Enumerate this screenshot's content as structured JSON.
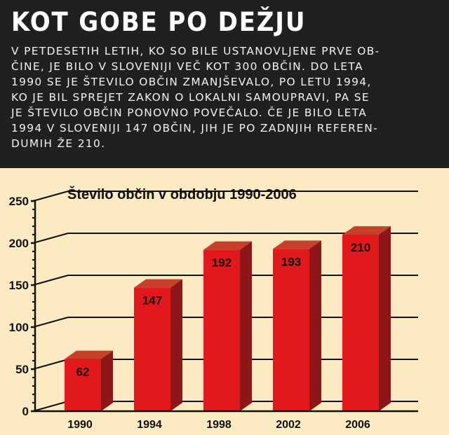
{
  "headline": "KOT GOBE PO DEŽJU",
  "body_lines": [
    "V PETDESETIH LETIH, KO SO BILE USTANOVLJENE PRVE OB-",
    "ČINE, JE BILO V SLOVENIJI VEČ KOT 300 OBČIN. DO LETA",
    "1990 SE JE ŠTEVILO OBČIN ZMANJŠEVALO, PO LETU 1994,",
    "KO JE BIL SPREJET ZAKON O LOKALNI SAMOUPRAVI, PA SE",
    "JE ŠTEVILO OBČIN PONOVNO POVEČALO. ČE JE BILO LETA",
    "1994 V SLOVENIJI 147 OBČIN, JIH JE PO ZADNJIH REFEREN-",
    "DUMIH ŽE 210."
  ],
  "colors": {
    "header_bg": "#1e211f",
    "chart_bg": "#fbeac2",
    "bar_front": "#e3181c",
    "bar_top": "#c9402a",
    "bar_side": "#8e1518"
  },
  "chart_data": {
    "type": "bar",
    "title": "Število občin v obdobju 1990-2006",
    "categories": [
      "1990",
      "1994",
      "1998",
      "2002",
      "2006"
    ],
    "values": [
      62,
      147,
      192,
      193,
      210
    ],
    "ylim": [
      0,
      250
    ],
    "yticks": [
      0,
      50,
      100,
      150,
      200,
      250
    ],
    "grid": true,
    "legend": "none"
  }
}
